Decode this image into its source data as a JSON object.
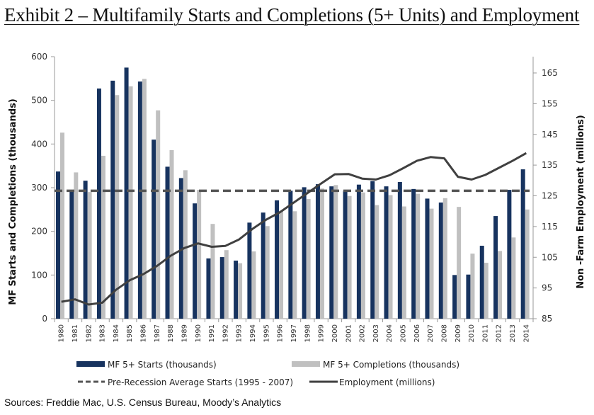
{
  "title": "Exhibit 2 – Multifamily Starts and Completions (5+ Units) and Employment",
  "sources": "Sources:  Freddie Mac, U.S. Census Bureau, Moody’s Analytics",
  "colors": {
    "starts": "#17335f",
    "completions": "#c0c0c0",
    "average": "#555555",
    "employment": "#404040"
  },
  "chart_data": {
    "type": "bar",
    "title": "Exhibit 2 – Multifamily Starts and Completions (5+ Units) and Employment",
    "categories": [
      "1980",
      "1981",
      "1982",
      "1983",
      "1984",
      "1985",
      "1986",
      "1987",
      "1988",
      "1989",
      "1990",
      "1991",
      "1992",
      "1993",
      "1994",
      "1995",
      "1996",
      "1997",
      "1998",
      "1999",
      "2000",
      "2001",
      "2002",
      "2003",
      "2004",
      "2005",
      "2006",
      "2007",
      "2008",
      "2009",
      "2010",
      "2011",
      "2012",
      "2013",
      "2014"
    ],
    "ylabel": "MF Starts and Completions (thousands)",
    "y2label": "Non -Farm Employment (millions)",
    "ylim": [
      0,
      600
    ],
    "y2lim": [
      85,
      170
    ],
    "yticks": [
      0,
      100,
      200,
      300,
      400,
      500,
      600
    ],
    "y2ticks": [
      85,
      95,
      105,
      115,
      125,
      135,
      145,
      155,
      165
    ],
    "legend_position": "bottom",
    "series": [
      {
        "name": "MF 5+ Starts (thousands)",
        "type": "bar",
        "axis": "left",
        "values": [
          337,
          295,
          316,
          527,
          545,
          575,
          543,
          410,
          348,
          322,
          264,
          138,
          141,
          133,
          220,
          243,
          271,
          293,
          301,
          308,
          303,
          293,
          307,
          315,
          303,
          313,
          297,
          275,
          266,
          100,
          101,
          167,
          235,
          295,
          342
        ]
      },
      {
        "name": "MF 5+ Completions (thousands)",
        "type": "bar",
        "axis": "left",
        "values": [
          426,
          335,
          290,
          373,
          512,
          532,
          549,
          477,
          386,
          340,
          295,
          217,
          157,
          127,
          154,
          212,
          247,
          246,
          274,
          298,
          306,
          281,
          289,
          260,
          283,
          257,
          286,
          252,
          276,
          256,
          149,
          128,
          155,
          186,
          250
        ]
      },
      {
        "name": "Pre-Recession Average Starts (1995 - 2007)",
        "type": "line",
        "style": "dashed",
        "axis": "left",
        "value": 293
      },
      {
        "name": "Employment (millions)",
        "type": "line",
        "axis": "right",
        "values": [
          90.5,
          91.3,
          89.6,
          90.2,
          94.4,
          97.5,
          99.5,
          102.2,
          105.5,
          108.0,
          109.5,
          108.4,
          108.7,
          110.8,
          114.3,
          117.3,
          119.7,
          122.8,
          125.9,
          129.0,
          132.0,
          132.1,
          130.6,
          130.3,
          131.7,
          134.0,
          136.4,
          137.6,
          137.2,
          131.2,
          130.3,
          131.8,
          134.1,
          136.4,
          138.9
        ]
      }
    ]
  },
  "legend": [
    {
      "label": "MF 5+ Starts (thousands)",
      "kind": "starts"
    },
    {
      "label": "MF 5+ Completions (thousands)",
      "kind": "completions"
    },
    {
      "label": "Pre-Recession Average Starts (1995 - 2007)",
      "kind": "average"
    },
    {
      "label": "Employment (millions)",
      "kind": "employment"
    }
  ]
}
